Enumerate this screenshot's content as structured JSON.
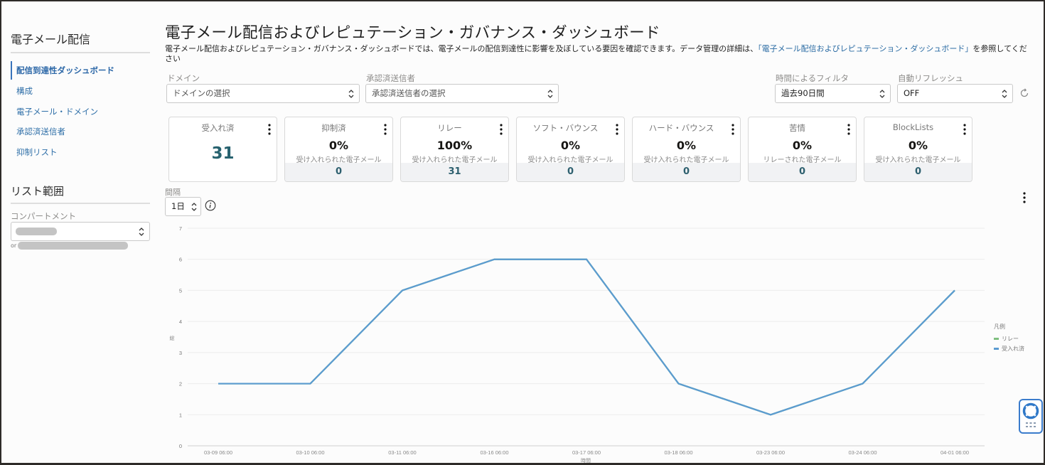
{
  "sidebar": {
    "title": "電子メール配信",
    "items": [
      {
        "label": "配信到達性ダッシュボード",
        "active": true
      },
      {
        "label": "構成",
        "active": false
      },
      {
        "label": "電子メール・ドメイン",
        "active": false
      },
      {
        "label": "承認済送信者",
        "active": false
      },
      {
        "label": "抑制リスト",
        "active": false
      }
    ],
    "scope": {
      "title": "リスト範囲",
      "compartment_label": "コンパートメント",
      "compartment_value": "",
      "or_text": "or"
    }
  },
  "header": {
    "title": "電子メール配信およびレピュテーション・ガバナンス・ダッシュボード",
    "description_prefix": "電子メール配信およびレピュテーション・ガバナンス・ダッシュボードでは、電子メールの配信到達性に影響を及ぼしている要因を確認できます。データ管理の詳細は、",
    "description_link": "「電子メール配信およびレピュテーション・ダッシュボード」",
    "description_suffix": "を参照してください"
  },
  "filters": {
    "domain": {
      "label": "ドメイン",
      "placeholder": "ドメインの選択"
    },
    "sender": {
      "label": "承認済送信者",
      "placeholder": "承認済送信者の選択"
    },
    "time": {
      "label": "時間によるフィルタ",
      "value": "過去90日間"
    },
    "refresh": {
      "label": "自動リフレッシュ",
      "value": "OFF"
    },
    "refresh_icon": "refresh-icon"
  },
  "kpis": [
    {
      "title": "受入れ済",
      "big": "31"
    },
    {
      "title": "抑制済",
      "pct": "0%",
      "sub": "受け入れられた電子メール",
      "count": "0"
    },
    {
      "title": "リレー",
      "pct": "100%",
      "sub": "受け入れられた電子メール",
      "count": "31"
    },
    {
      "title": "ソフト・バウンス",
      "pct": "0%",
      "sub": "受け入れられた電子メール",
      "count": "0"
    },
    {
      "title": "ハード・バウンス",
      "pct": "0%",
      "sub": "受け入れられた電子メール",
      "count": "0"
    },
    {
      "title": "苦情",
      "pct": "0%",
      "sub": "リレーされた電子メール",
      "count": "0"
    },
    {
      "title": "BlockLists",
      "pct": "0%",
      "sub": "受け入れられた電子メール",
      "count": "0"
    }
  ],
  "interval": {
    "label": "間隔",
    "value": "1日"
  },
  "colors": {
    "accepted": "#5b9bd1",
    "relay": "#7fbf7f",
    "link": "#2a6ba3",
    "kpi_value": "#27626f",
    "help_border": "#3b7ccc"
  },
  "chart_data": {
    "type": "line",
    "title": "",
    "xlabel": "時間",
    "ylabel": "総",
    "ylim": [
      0,
      7
    ],
    "yticks": [
      0,
      1,
      2,
      3,
      4,
      5,
      6,
      7
    ],
    "grid": true,
    "legend_title": "凡例",
    "legend_position": "right",
    "categories": [
      "03-09 06:00",
      "03-10 06:00",
      "03-11 06:00",
      "03-16 06:00",
      "03-17 06:00",
      "03-18 06:00",
      "03-23 06:00",
      "03-24 06:00",
      "04-01 06:00"
    ],
    "series": [
      {
        "name": "リレー",
        "color": "#7fbf7f",
        "values": [
          2,
          2,
          5,
          6,
          6,
          2,
          1,
          2,
          5
        ]
      },
      {
        "name": "受入れ済",
        "color": "#5b9bd1",
        "values": [
          2,
          2,
          5,
          6,
          6,
          2,
          1,
          2,
          5
        ]
      }
    ]
  }
}
